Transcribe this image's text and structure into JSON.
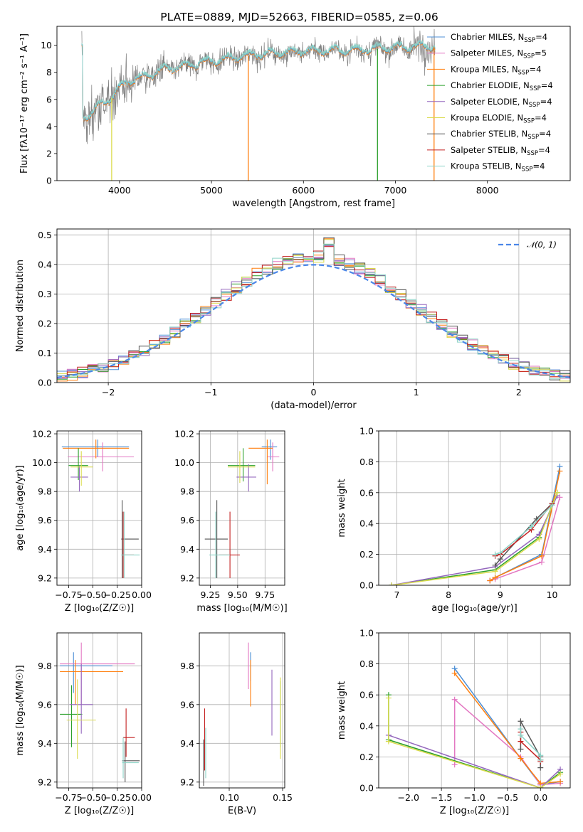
{
  "colors": {
    "Chabrier MILES": "#4c8fd6",
    "Salpeter MILES": "#e377c2",
    "Kroupa MILES": "#ff7f0e",
    "Chabrier ELODIE": "#2ca02c",
    "Salpeter ELODIE": "#9467bd",
    "Kroupa ELODIE": "#dbdb4d",
    "Chabrier STELIB": "#555555",
    "Salpeter STELIB": "#c42020",
    "Kroupa STELIB": "#8dd3c7",
    "data": "#7f7f7f",
    "gaussian": "#4a86e8"
  },
  "chart_data": [
    {
      "id": "spectrum",
      "type": "line",
      "title": "PLATE=0889, MJD=52663, FIBERID=0585, z=0.06",
      "xlabel": "wavelength [Angstrom, rest frame]",
      "ylabel": "Flux [fλ10⁻¹⁷ erg cm⁻² s⁻¹ A⁻¹]",
      "xlim": [
        3320,
        8900
      ],
      "ylim": [
        0,
        11.4
      ],
      "xticks": [
        4000,
        5000,
        6000,
        7000,
        8000
      ],
      "yticks": [
        0,
        2,
        4,
        6,
        8,
        10
      ],
      "grid": false,
      "legend_position": "right",
      "legend": [
        {
          "label": "Chabrier MILES, N",
          "sub": "SSP",
          "suffix": "=4"
        },
        {
          "label": "Salpeter MILES, N",
          "sub": "SSP",
          "suffix": "=5"
        },
        {
          "label": "Kroupa MILES, N",
          "sub": "SSP",
          "suffix": "=4"
        },
        {
          "label": "Chabrier ELODIE, N",
          "sub": "SSP",
          "suffix": "=4"
        },
        {
          "label": "Salpeter ELODIE, N",
          "sub": "SSP",
          "suffix": "=4"
        },
        {
          "label": "Kroupa ELODIE, N",
          "sub": "SSP",
          "suffix": "=4"
        },
        {
          "label": "Chabrier STELIB, N",
          "sub": "SSP",
          "suffix": "=4"
        },
        {
          "label": "Salpeter STELIB, N",
          "sub": "SSP",
          "suffix": "=4"
        },
        {
          "label": "Kroupa STELIB, N",
          "sub": "SSP",
          "suffix": "=4"
        }
      ],
      "continuum": [
        [
          3600,
          4.5
        ],
        [
          3700,
          5.0
        ],
        [
          3800,
          5.6
        ],
        [
          3900,
          6.0
        ],
        [
          4000,
          6.8
        ],
        [
          4100,
          7.3
        ],
        [
          4200,
          7.5
        ],
        [
          4300,
          7.7
        ],
        [
          4500,
          8.2
        ],
        [
          4700,
          8.4
        ],
        [
          5000,
          8.8
        ],
        [
          5500,
          9.3
        ],
        [
          6000,
          9.5
        ],
        [
          6500,
          9.6
        ],
        [
          7000,
          9.8
        ],
        [
          7500,
          9.9
        ]
      ],
      "x_range": [
        3590,
        7430
      ]
    },
    {
      "id": "residuals",
      "type": "area",
      "xlabel": "(data-model)/error",
      "ylabel": "Normed distribution",
      "xlim": [
        -2.5,
        2.5
      ],
      "ylim": [
        0,
        0.52
      ],
      "xticks": [
        -2,
        -1,
        0,
        1,
        2
      ],
      "yticks": [
        0.0,
        0.1,
        0.2,
        0.3,
        0.4,
        0.5
      ],
      "grid": true,
      "legend": "𝒩(0, 1)",
      "legend_position": "top-right"
    },
    {
      "id": "age-vs-Z",
      "type": "scatter",
      "xlabel": "Z [log₁₀(Z/Z☉)]",
      "ylabel": "age  [log₁₀(age/yr)]",
      "xlim": [
        -0.87,
        0.0
      ],
      "ylim": [
        9.15,
        10.22
      ],
      "xticks": [
        -0.75,
        -0.5,
        -0.25,
        0.0
      ],
      "xticklabels": [
        "−0.75",
        "−0.50",
        "−0.25",
        "0.00"
      ],
      "yticks": [
        9.2,
        9.4,
        9.6,
        9.8,
        10.0,
        10.2
      ],
      "grid": true,
      "points": [
        {
          "s": "Chabrier MILES",
          "x": -0.45,
          "xe": [
            -0.82,
            -0.13
          ],
          "y": 10.11,
          "ye": [
            10.04,
            10.16
          ]
        },
        {
          "s": "Salpeter MILES",
          "x": -0.4,
          "xe": [
            -0.76,
            -0.08
          ],
          "y": 10.04,
          "ye": [
            9.94,
            10.14
          ]
        },
        {
          "s": "Kroupa MILES",
          "x": -0.47,
          "xe": [
            -0.81,
            -0.13
          ],
          "y": 10.1,
          "ye": [
            10.03,
            10.16
          ]
        },
        {
          "s": "Chabrier ELODIE",
          "x": -0.65,
          "xe": [
            -0.75,
            -0.55
          ],
          "y": 9.98,
          "ye": [
            9.88,
            10.1
          ]
        },
        {
          "s": "Salpeter ELODIE",
          "x": -0.64,
          "xe": [
            -0.73,
            -0.55
          ],
          "y": 9.9,
          "ye": [
            9.8,
            9.98
          ]
        },
        {
          "s": "Kroupa ELODIE",
          "x": -0.62,
          "xe": [
            -0.73,
            -0.5
          ],
          "y": 9.97,
          "ye": [
            9.84,
            10.08
          ]
        },
        {
          "s": "Chabrier STELIB",
          "x": -0.2,
          "xe": [
            -0.21,
            -0.03
          ],
          "y": 9.47,
          "ye": [
            9.2,
            9.74
          ]
        },
        {
          "s": "Salpeter STELIB",
          "x": -0.19,
          "xe": [
            -0.2,
            -0.08
          ],
          "y": 9.36,
          "ye": [
            9.2,
            9.66
          ]
        },
        {
          "s": "Kroupa STELIB",
          "x": -0.18,
          "xe": [
            -0.21,
            -0.02
          ],
          "y": 9.36,
          "ye": [
            9.2,
            9.66
          ]
        }
      ]
    },
    {
      "id": "age-vs-mass",
      "type": "scatter",
      "xlabel": "mass [log₁₀(M/M☉)]",
      "ylabel": "",
      "xlim": [
        9.15,
        9.93
      ],
      "ylim": [
        9.15,
        10.22
      ],
      "xticks": [
        9.25,
        9.5,
        9.75
      ],
      "xticklabels": [
        "9.25",
        "9.50",
        "9.75"
      ],
      "yticks": [
        9.2,
        9.4,
        9.6,
        9.8,
        10.0,
        10.2
      ],
      "grid": true,
      "points": [
        {
          "s": "Chabrier MILES",
          "x": 9.8,
          "xe": [
            9.72,
            9.86
          ],
          "y": 10.11,
          "ye": [
            10.02,
            10.16
          ]
        },
        {
          "s": "Salpeter MILES",
          "x": 9.82,
          "xe": [
            9.77,
            9.88
          ],
          "y": 10.04,
          "ye": [
            9.94,
            10.14
          ]
        },
        {
          "s": "Kroupa MILES",
          "x": 9.77,
          "xe": [
            9.6,
            9.82
          ],
          "y": 10.1,
          "ye": [
            9.85,
            10.16
          ]
        },
        {
          "s": "Chabrier ELODIE",
          "x": 9.55,
          "xe": [
            9.41,
            9.66
          ],
          "y": 9.98,
          "ye": [
            9.87,
            10.1
          ]
        },
        {
          "s": "Salpeter ELODIE",
          "x": 9.6,
          "xe": [
            9.49,
            9.67
          ],
          "y": 9.9,
          "ye": [
            9.8,
            9.99
          ]
        },
        {
          "s": "Kroupa ELODIE",
          "x": 9.52,
          "xe": [
            9.41,
            9.66
          ],
          "y": 9.97,
          "ye": [
            9.86,
            10.08
          ]
        },
        {
          "s": "Chabrier STELIB",
          "x": 9.31,
          "xe": [
            9.2,
            9.41
          ],
          "y": 9.47,
          "ye": [
            9.2,
            9.74
          ]
        },
        {
          "s": "Salpeter STELIB",
          "x": 9.43,
          "xe": [
            9.33,
            9.52
          ],
          "y": 9.36,
          "ye": [
            9.2,
            9.66
          ]
        },
        {
          "s": "Kroupa STELIB",
          "x": 9.3,
          "xe": [
            9.24,
            9.43
          ],
          "y": 9.36,
          "ye": [
            9.2,
            9.66
          ]
        }
      ]
    },
    {
      "id": "weight-vs-age",
      "type": "line",
      "xlabel": "age  [log₁₀(age/yr)]",
      "ylabel": "mass weight",
      "xlim": [
        6.65,
        10.35
      ],
      "ylim": [
        0,
        1.0
      ],
      "xticks": [
        7,
        8,
        9,
        10
      ],
      "yticks": [
        0.0,
        0.2,
        0.4,
        0.6,
        0.8,
        1.0
      ],
      "grid": true,
      "series": [
        {
          "s": "Chabrier MILES",
          "x": [
            8.8,
            8.9,
            9.8,
            10.15
          ],
          "y": [
            0.03,
            0.05,
            0.2,
            0.77
          ]
        },
        {
          "s": "Salpeter MILES",
          "x": [
            8.8,
            8.9,
            9.8,
            10.15
          ],
          "y": [
            0.03,
            0.04,
            0.15,
            0.57
          ]
        },
        {
          "s": "Kroupa MILES",
          "x": [
            8.8,
            8.9,
            9.8,
            10.15
          ],
          "y": [
            0.03,
            0.05,
            0.19,
            0.74
          ]
        },
        {
          "s": "Chabrier ELODIE",
          "x": [
            6.9,
            8.9,
            9.75,
            10.1
          ],
          "y": [
            0.0,
            0.1,
            0.31,
            0.6
          ]
        },
        {
          "s": "Salpeter ELODIE",
          "x": [
            6.9,
            8.9,
            9.75,
            10.1
          ],
          "y": [
            0.0,
            0.12,
            0.33,
            0.58
          ]
        },
        {
          "s": "Kroupa ELODIE",
          "x": [
            6.9,
            8.9,
            9.75,
            10.1
          ],
          "y": [
            0.0,
            0.09,
            0.3,
            0.6
          ]
        },
        {
          "s": "Chabrier STELIB",
          "x": [
            8.9,
            9.0,
            9.7,
            10.0
          ],
          "y": [
            0.13,
            0.17,
            0.43,
            0.53
          ]
        },
        {
          "s": "Salpeter STELIB",
          "x": [
            8.9,
            9.0,
            9.6,
            10.0
          ],
          "y": [
            0.19,
            0.2,
            0.36,
            0.53
          ]
        },
        {
          "s": "Kroupa STELIB",
          "x": [
            8.9,
            9.0,
            9.6,
            10.0
          ],
          "y": [
            0.2,
            0.21,
            0.38,
            0.52
          ]
        }
      ]
    },
    {
      "id": "mass-vs-Z",
      "type": "scatter",
      "xlabel": "Z [log₁₀(Z/Z☉)]",
      "ylabel": "mass [log₁₀(M/M☉)]",
      "xlim": [
        -0.87,
        0.0
      ],
      "ylim": [
        9.17,
        9.97
      ],
      "xticks": [
        -0.75,
        -0.5,
        -0.25,
        0.0
      ],
      "xticklabels": [
        "−0.75",
        "−0.50",
        "−0.25",
        "0.00"
      ],
      "yticks": [
        9.2,
        9.4,
        9.6,
        9.8
      ],
      "grid": true,
      "points": [
        {
          "s": "Chabrier MILES",
          "x": -0.7,
          "xe": [
            -0.84,
            -0.3
          ],
          "y": 9.8,
          "ye": [
            9.66,
            9.87
          ]
        },
        {
          "s": "Salpeter MILES",
          "x": -0.62,
          "xe": [
            -0.84,
            -0.07
          ],
          "y": 9.81,
          "ye": [
            9.6,
            9.92
          ]
        },
        {
          "s": "Kroupa MILES",
          "x": -0.68,
          "xe": [
            -0.84,
            -0.19
          ],
          "y": 9.77,
          "ye": [
            9.6,
            9.83
          ]
        },
        {
          "s": "Chabrier ELODIE",
          "x": -0.72,
          "xe": [
            -0.84,
            -0.61
          ],
          "y": 9.55,
          "ye": [
            9.38,
            9.7
          ]
        },
        {
          "s": "Salpeter ELODIE",
          "x": -0.62,
          "xe": [
            -0.74,
            -0.5
          ],
          "y": 9.6,
          "ye": [
            9.45,
            9.81
          ]
        },
        {
          "s": "Kroupa ELODIE",
          "x": -0.66,
          "xe": [
            -0.77,
            -0.47
          ],
          "y": 9.52,
          "ye": [
            9.32,
            9.73
          ]
        },
        {
          "s": "Chabrier STELIB",
          "x": -0.17,
          "xe": [
            -0.2,
            -0.02
          ],
          "y": 9.31,
          "ye": [
            9.2,
            9.41
          ]
        },
        {
          "s": "Salpeter STELIB",
          "x": -0.16,
          "xe": [
            -0.19,
            -0.07
          ],
          "y": 9.43,
          "ye": [
            9.33,
            9.58
          ]
        },
        {
          "s": "Kroupa STELIB",
          "x": -0.19,
          "xe": [
            -0.2,
            -0.03
          ],
          "y": 9.3,
          "ye": [
            9.22,
            9.43
          ]
        }
      ]
    },
    {
      "id": "mass-vs-ebv",
      "type": "scatter",
      "xlabel": "E(B-V)",
      "ylabel": "",
      "xlim": [
        0.072,
        0.152
      ],
      "ylim": [
        9.17,
        9.97
      ],
      "xticks": [
        0.1,
        0.15
      ],
      "xticklabels": [
        "0.10",
        "0.15"
      ],
      "yticks": [
        9.2,
        9.4,
        9.6,
        9.8
      ],
      "grid": true,
      "points": [
        {
          "s": "Chabrier MILES",
          "x": 0.12,
          "y": 9.8,
          "ye": [
            9.72,
            9.87
          ]
        },
        {
          "s": "Salpeter MILES",
          "x": 0.118,
          "y": 9.81,
          "ye": [
            9.68,
            9.92
          ]
        },
        {
          "s": "Kroupa MILES",
          "x": 0.12,
          "y": 9.77,
          "ye": [
            9.59,
            9.83
          ]
        },
        {
          "s": "Chabrier ELODIE",
          "x": 0.148,
          "y": 9.55,
          "ye": [
            9.38,
            9.72
          ]
        },
        {
          "s": "Salpeter ELODIE",
          "x": 0.14,
          "y": 9.6,
          "ye": [
            9.44,
            9.78
          ]
        },
        {
          "s": "Kroupa ELODIE",
          "x": 0.148,
          "y": 9.52,
          "ye": [
            9.32,
            9.74
          ]
        },
        {
          "s": "Chabrier STELIB",
          "x": 0.076,
          "y": 9.31,
          "ye": [
            9.18,
            9.42
          ]
        },
        {
          "s": "Salpeter STELIB",
          "x": 0.077,
          "y": 9.43,
          "ye": [
            9.26,
            9.58
          ]
        },
        {
          "s": "Kroupa STELIB",
          "x": 0.078,
          "y": 9.3,
          "ye": [
            9.22,
            9.48
          ]
        }
      ]
    },
    {
      "id": "weight-vs-Z",
      "type": "line",
      "xlabel": "Z [log₁₀(Z/Z☉)]",
      "ylabel": "mass weight",
      "xlim": [
        -2.45,
        0.45
      ],
      "ylim": [
        0,
        1.0
      ],
      "xticks": [
        -2.0,
        -1.5,
        -1.0,
        -0.5,
        0.0
      ],
      "xticklabels": [
        "−2.0",
        "−1.5",
        "−1.0",
        "−0.5",
        "0.0"
      ],
      "yticks": [
        0.0,
        0.2,
        0.4,
        0.6,
        0.8,
        1.0
      ],
      "grid": true,
      "series": [
        {
          "s": "Chabrier MILES",
          "x": [
            -1.3,
            -0.3,
            0.0,
            0.3
          ],
          "y": [
            0.77,
            0.19,
            0.02,
            0.04
          ]
        },
        {
          "s": "Salpeter MILES",
          "x": [
            -1.3,
            -1.3,
            -0.3,
            0.0,
            0.3
          ],
          "y": [
            0.15,
            0.57,
            0.2,
            0.02,
            0.03
          ]
        },
        {
          "s": "Kroupa MILES",
          "x": [
            -1.3,
            -0.3,
            0.0,
            0.3
          ],
          "y": [
            0.74,
            0.19,
            0.03,
            0.04
          ]
        },
        {
          "s": "Chabrier ELODIE",
          "x": [
            -2.3,
            -2.3,
            0.0,
            0.3
          ],
          "y": [
            0.6,
            0.31,
            0.0,
            0.1
          ]
        },
        {
          "s": "Salpeter ELODIE",
          "x": [
            -2.3,
            0.0,
            0.3
          ],
          "y": [
            0.34,
            0.0,
            0.12
          ]
        },
        {
          "s": "Kroupa ELODIE",
          "x": [
            -2.3,
            -2.3,
            0.0,
            0.3
          ],
          "y": [
            0.58,
            0.3,
            0.0,
            0.09
          ]
        },
        {
          "s": "Chabrier STELIB",
          "x": [
            -0.3,
            -0.3,
            0.0,
            0.0
          ],
          "y": [
            0.25,
            0.43,
            0.2,
            0.13
          ]
        },
        {
          "s": "Salpeter STELIB",
          "x": [
            -0.3,
            -0.3,
            0.0,
            0.0
          ],
          "y": [
            0.36,
            0.3,
            0.18,
            0.17
          ]
        },
        {
          "s": "Kroupa STELIB",
          "x": [
            -0.3,
            -0.3,
            0.0,
            0.0
          ],
          "y": [
            0.38,
            0.34,
            0.21,
            0.18
          ]
        }
      ]
    }
  ]
}
